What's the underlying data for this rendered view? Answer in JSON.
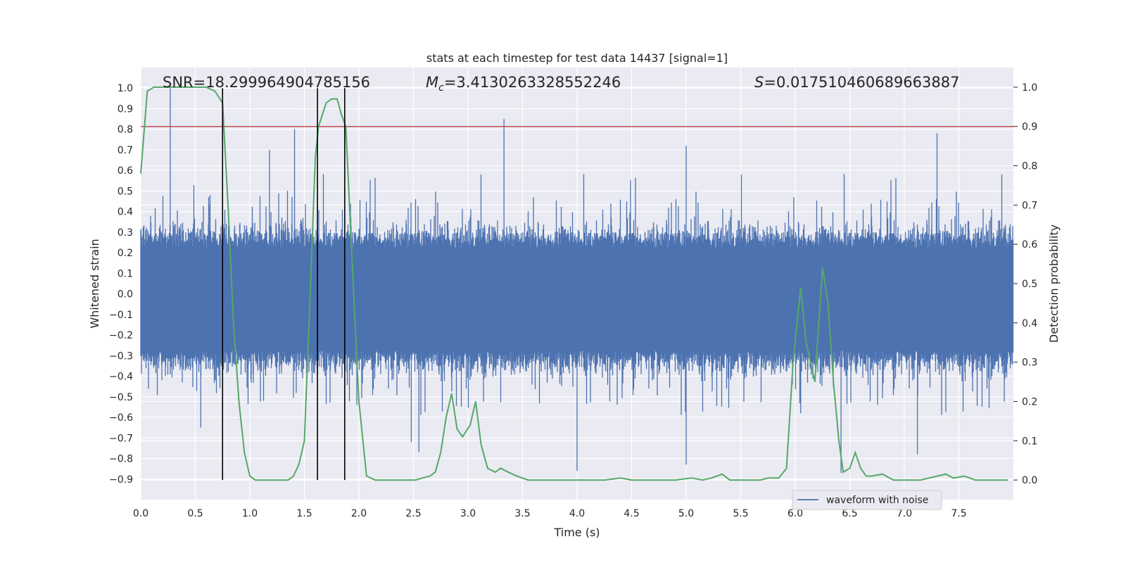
{
  "chart_data": {
    "type": "line",
    "title": "stats at each timestep for test data 14437 [signal=1]",
    "xlabel": "Time (s)",
    "ylabel_left": "Whitened strain",
    "ylabel_right": "Detection probability",
    "xlim": [
      0,
      8
    ],
    "ylim_left": [
      -1.0,
      1.1
    ],
    "ylim_right": [
      -0.05,
      1.05
    ],
    "x_ticks": [
      "0.0",
      "0.5",
      "1.0",
      "1.5",
      "2.0",
      "2.5",
      "3.0",
      "3.5",
      "4.0",
      "4.5",
      "5.0",
      "5.5",
      "6.0",
      "6.5",
      "7.0",
      "7.5"
    ],
    "y_left_ticks": [
      "-0.9",
      "-0.8",
      "-0.7",
      "-0.6",
      "-0.5",
      "-0.4",
      "-0.3",
      "-0.2",
      "-0.1",
      "0.0",
      "0.1",
      "0.2",
      "0.3",
      "0.4",
      "0.5",
      "0.6",
      "0.7",
      "0.8",
      "0.9",
      "1.0"
    ],
    "y_right_ticks": [
      "0.0",
      "0.1",
      "0.2",
      "0.3",
      "0.4",
      "0.5",
      "0.6",
      "0.7",
      "0.8",
      "0.9",
      "1.0"
    ],
    "grid": true,
    "legend_position": "lower-right",
    "annotations": {
      "snr": "SNR=18.299964904785156",
      "mc_symbol": "M",
      "mc_subscript": "c",
      "mc_value": "=3.4130263328552246",
      "s_symbol": "S",
      "s_value": "=0.017510460689663887"
    },
    "threshold": 0.9,
    "vertical_markers": [
      0.75,
      1.62,
      1.87
    ],
    "series": [
      {
        "name": "waveform with noise",
        "axis": "left",
        "color": "#4c72b0",
        "envelope_peaks": [
          {
            "x": 0.27,
            "y": 1.0
          },
          {
            "x": 1.41,
            "y": 0.8
          },
          {
            "x": 3.33,
            "y": 0.85
          },
          {
            "x": 7.3,
            "y": 0.78
          },
          {
            "x": 5.0,
            "y": 0.72
          },
          {
            "x": 1.18,
            "y": 0.7
          },
          {
            "x": 4.0,
            "y": -0.86
          },
          {
            "x": 6.42,
            "y": -0.87
          },
          {
            "x": 2.55,
            "y": -0.77
          },
          {
            "x": 7.12,
            "y": -0.78
          },
          {
            "x": 5.0,
            "y": -0.83
          },
          {
            "x": 2.48,
            "y": -0.72
          },
          {
            "x": 0.55,
            "y": -0.65
          },
          {
            "x": 6.05,
            "y": -0.58
          }
        ]
      },
      {
        "name": "",
        "axis": "right",
        "color": "#55a868",
        "x": [
          0.0,
          0.06,
          0.12,
          0.2,
          0.3,
          0.4,
          0.5,
          0.6,
          0.68,
          0.75,
          0.8,
          0.85,
          0.9,
          0.95,
          1.0,
          1.05,
          1.1,
          1.2,
          1.3,
          1.35,
          1.4,
          1.45,
          1.5,
          1.55,
          1.6,
          1.63,
          1.7,
          1.75,
          1.8,
          1.84,
          1.88,
          1.93,
          2.0,
          2.07,
          2.15,
          2.3,
          2.45,
          2.52,
          2.58,
          2.65,
          2.7,
          2.75,
          2.8,
          2.85,
          2.9,
          2.95,
          3.02,
          3.07,
          3.12,
          3.18,
          3.25,
          3.3,
          3.37,
          3.45,
          3.55,
          3.7,
          3.9,
          4.1,
          4.25,
          4.4,
          4.5,
          4.7,
          4.9,
          5.05,
          5.15,
          5.23,
          5.28,
          5.33,
          5.4,
          5.5,
          5.6,
          5.68,
          5.75,
          5.85,
          5.92,
          5.98,
          6.05,
          6.1,
          6.18,
          6.25,
          6.3,
          6.35,
          6.4,
          6.44,
          6.5,
          6.55,
          6.6,
          6.65,
          6.7,
          6.8,
          6.9,
          7.0,
          7.15,
          7.3,
          7.38,
          7.45,
          7.55,
          7.65,
          7.8,
          7.95
        ],
        "values": [
          0.78,
          0.99,
          1.0,
          1.0,
          1.0,
          1.0,
          1.0,
          1.0,
          0.99,
          0.96,
          0.7,
          0.4,
          0.2,
          0.07,
          0.01,
          0.0,
          0.0,
          0.0,
          0.0,
          0.0,
          0.01,
          0.04,
          0.1,
          0.45,
          0.82,
          0.9,
          0.96,
          0.97,
          0.97,
          0.93,
          0.9,
          0.6,
          0.2,
          0.01,
          0.0,
          0.0,
          0.0,
          0.0,
          0.005,
          0.01,
          0.02,
          0.07,
          0.16,
          0.22,
          0.13,
          0.11,
          0.14,
          0.2,
          0.09,
          0.03,
          0.02,
          0.03,
          0.02,
          0.01,
          0.0,
          0.0,
          0.0,
          0.0,
          0.0,
          0.005,
          0.0,
          0.0,
          0.0,
          0.005,
          0.0,
          0.005,
          0.01,
          0.015,
          0.0,
          0.0,
          0.0,
          0.0,
          0.005,
          0.005,
          0.03,
          0.3,
          0.49,
          0.35,
          0.25,
          0.54,
          0.45,
          0.25,
          0.1,
          0.02,
          0.03,
          0.07,
          0.03,
          0.01,
          0.01,
          0.015,
          0.0,
          0.0,
          0.0,
          0.01,
          0.015,
          0.005,
          0.01,
          0.0,
          0.0,
          0.0
        ]
      }
    ]
  }
}
